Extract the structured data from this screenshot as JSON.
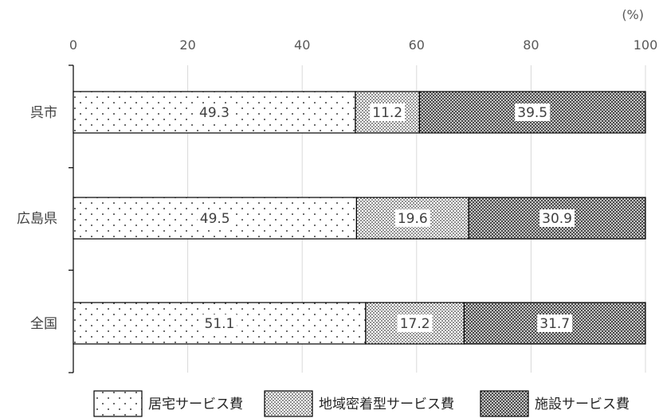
{
  "chart_data": {
    "type": "bar",
    "orientation": "horizontal",
    "stacked": true,
    "unit": "(%)",
    "categories": [
      "呉市",
      "広島県",
      "全国"
    ],
    "series": [
      {
        "name": "居宅サービス費",
        "values": [
          49.3,
          49.5,
          51.1
        ],
        "pattern": "sparse-dots"
      },
      {
        "name": "地域密着型サービス費",
        "values": [
          11.2,
          19.6,
          17.2
        ],
        "pattern": "dense-dots"
      },
      {
        "name": "施設サービス費",
        "values": [
          39.5,
          30.9,
          31.7
        ],
        "pattern": "crosshatch"
      }
    ],
    "xlim": [
      0,
      100
    ],
    "xticks": [
      0,
      20,
      40,
      60,
      80,
      100
    ],
    "x_axis_position": "top",
    "grid": true,
    "legend_position": "bottom"
  }
}
